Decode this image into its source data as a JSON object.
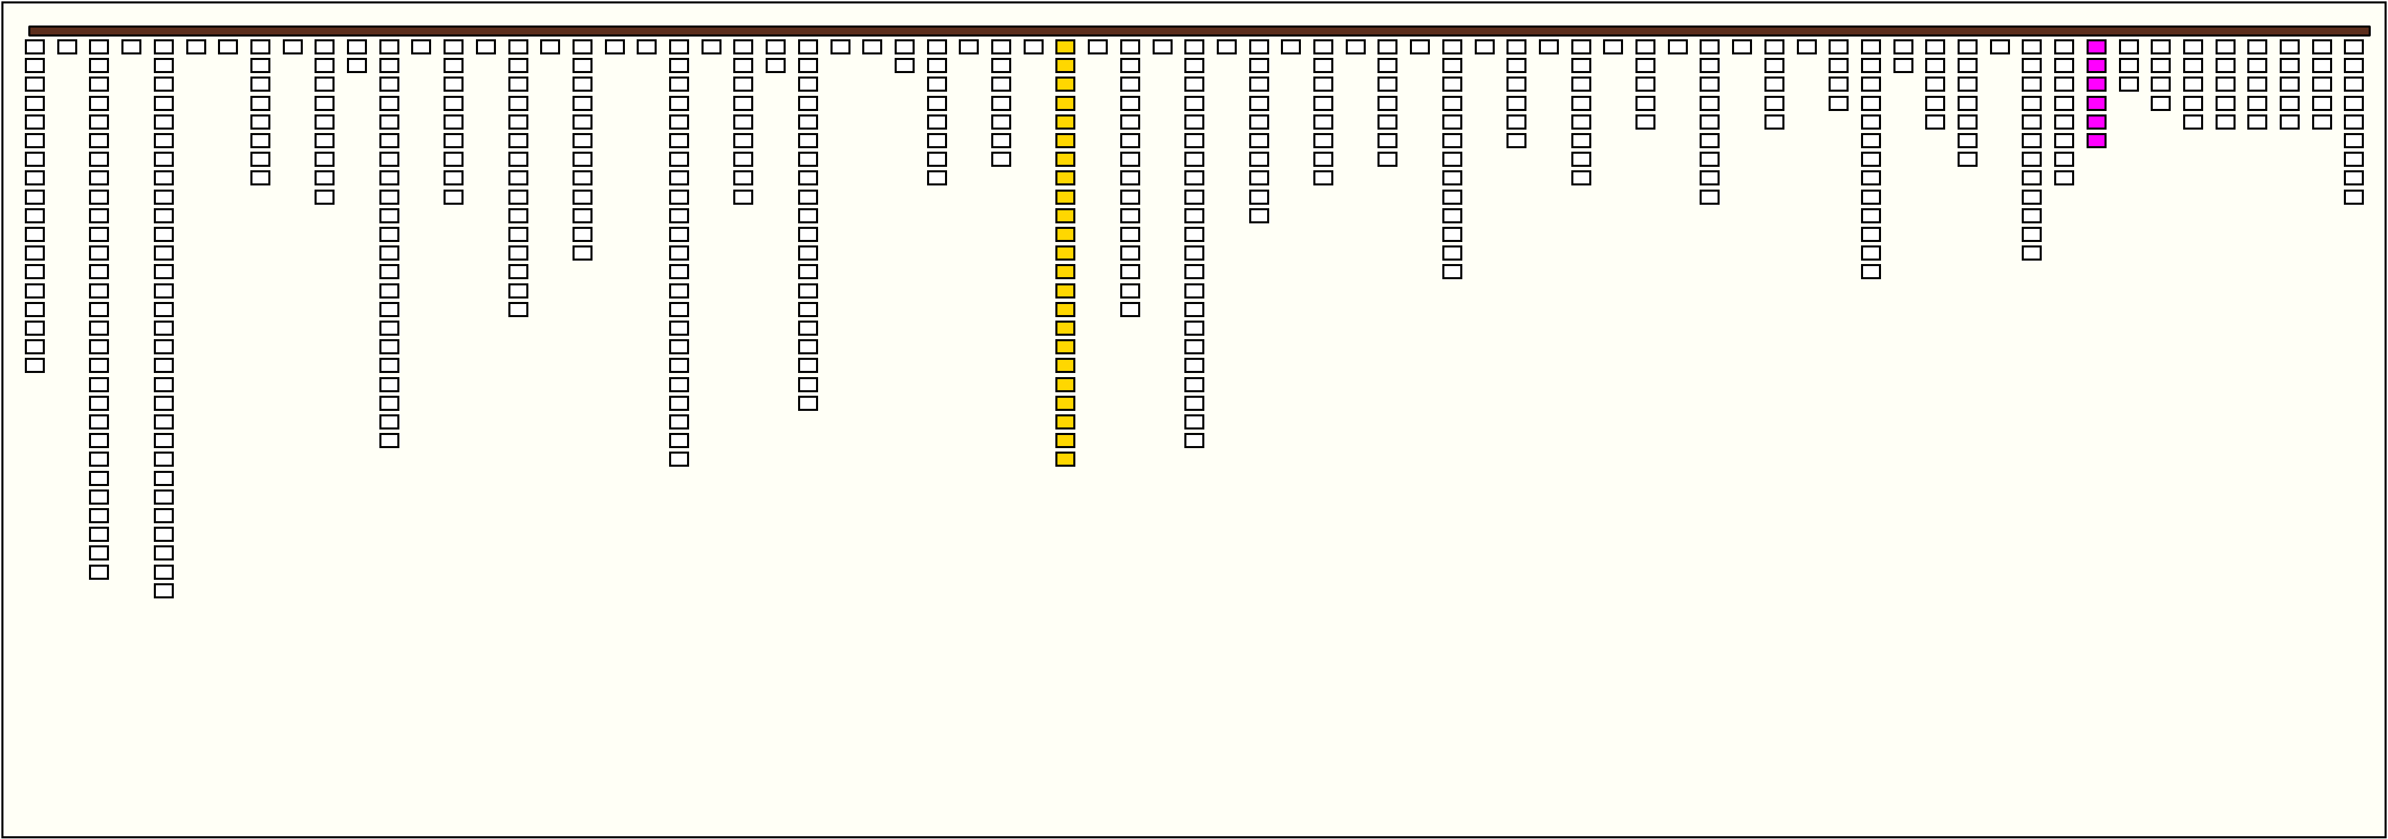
{
  "colors": {
    "background": "#fffff6",
    "bar": "#5c2e1c",
    "cell_default": "#ffffff",
    "cell_border": "#000000"
  },
  "columns": [
    18,
    1,
    29,
    1,
    30,
    1,
    1,
    8,
    1,
    9,
    2,
    22,
    1,
    9,
    1,
    15,
    1,
    12,
    1,
    1,
    23,
    1,
    9,
    2,
    20,
    1,
    1,
    2,
    8,
    1,
    7,
    1,
    23,
    1,
    15,
    1,
    22,
    1,
    10,
    1,
    8,
    1,
    7,
    1,
    13,
    1,
    6,
    1,
    8,
    1,
    5,
    1,
    9,
    1,
    5,
    1,
    4,
    13,
    2,
    5,
    7,
    1,
    12,
    8,
    6,
    3,
    4,
    5,
    5,
    5,
    5,
    5,
    9
  ],
  "highlighted_columns": [
    {
      "column": 33,
      "color": "#ffd700"
    },
    {
      "column": 65,
      "color": "#ff00ff"
    }
  ]
}
